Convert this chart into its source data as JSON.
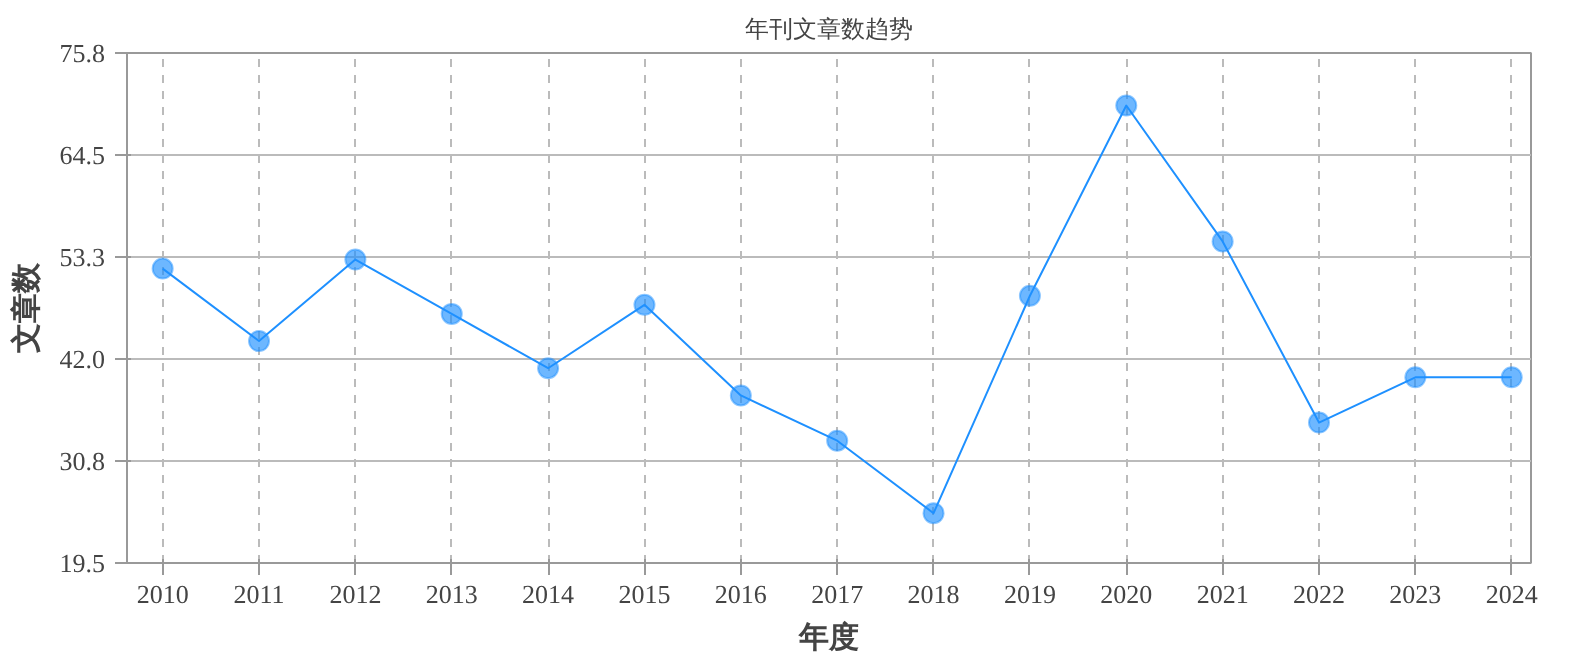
{
  "chart_data": {
    "type": "line",
    "title": "年刊文章数趋势",
    "xlabel": "年度",
    "ylabel": "文章数",
    "categories": [
      "2010",
      "2011",
      "2012",
      "2013",
      "2014",
      "2015",
      "2016",
      "2017",
      "2018",
      "2019",
      "2020",
      "2021",
      "2022",
      "2023",
      "2024"
    ],
    "series": [
      {
        "color": "#1e90ff",
        "values": [
          52,
          44,
          53,
          47,
          41,
          48,
          38,
          33,
          25,
          49,
          70,
          55,
          35,
          40,
          40
        ]
      }
    ],
    "ylim": [
      19.5,
      75.8
    ],
    "yticks": [
      19.5,
      30.8,
      {
        "value": 42,
        "label": "42.0"
      },
      53.3,
      64.5,
      75.8
    ],
    "grid": true,
    "marker": "circle",
    "line_style": "solid"
  }
}
